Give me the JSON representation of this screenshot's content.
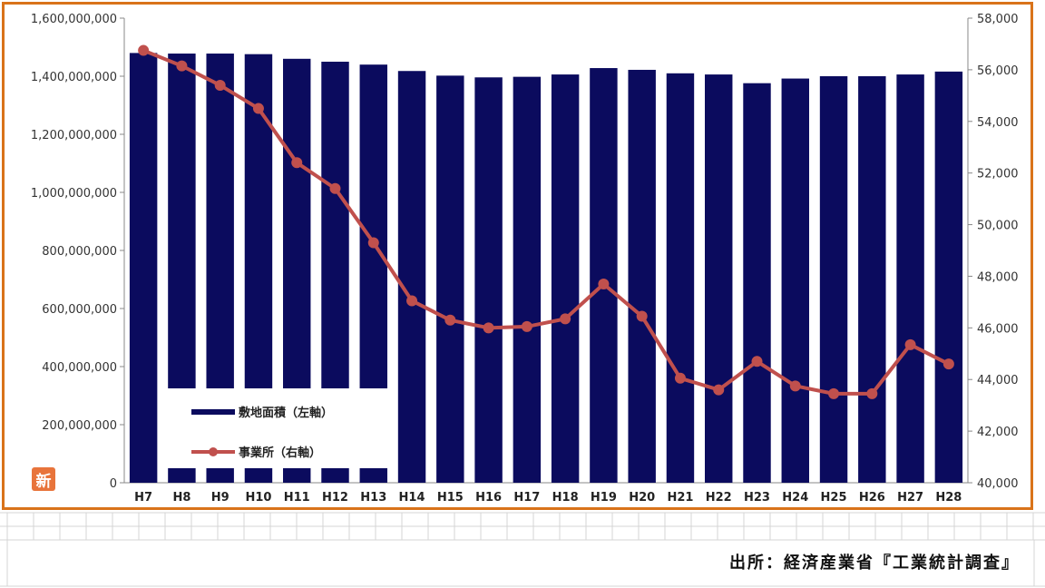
{
  "chart_data": {
    "type": "bar+line",
    "categories": [
      "H7",
      "H8",
      "H9",
      "H10",
      "H11",
      "H12",
      "H13",
      "H14",
      "H15",
      "H16",
      "H17",
      "H18",
      "H19",
      "H20",
      "H21",
      "H22",
      "H23",
      "H24",
      "H25",
      "H26",
      "H27",
      "H28"
    ],
    "series": [
      {
        "name": "敷地面積（左軸）",
        "type": "bar",
        "axis": "left",
        "color": "#0b0b5e",
        "values": [
          1480000000,
          1478000000,
          1478000000,
          1476000000,
          1460000000,
          1450000000,
          1440000000,
          1418000000,
          1402000000,
          1396000000,
          1398000000,
          1406000000,
          1428000000,
          1422000000,
          1410000000,
          1406000000,
          1376000000,
          1392000000,
          1400000000,
          1400000000,
          1406000000,
          1416000000
        ]
      },
      {
        "name": "事業所（右軸）",
        "type": "line",
        "axis": "right",
        "color": "#c0504d",
        "values": [
          56750,
          56150,
          55400,
          54500,
          52400,
          51400,
          49300,
          47050,
          46300,
          46000,
          46050,
          46350,
          47700,
          46450,
          44050,
          43600,
          44700,
          43750,
          43450,
          43450,
          45350,
          44600
        ]
      }
    ],
    "y_left": {
      "range": [
        0,
        1600000000
      ],
      "ticks": [
        "0",
        "200,000,000",
        "400,000,000",
        "600,000,000",
        "800,000,000",
        "1,000,000,000",
        "1,200,000,000",
        "1,400,000,000",
        "1,600,000,000"
      ]
    },
    "y_right": {
      "range": [
        40000,
        58000
      ],
      "ticks": [
        "40,000",
        "42,000",
        "44,000",
        "46,000",
        "48,000",
        "50,000",
        "52,000",
        "54,000",
        "56,000",
        "58,000"
      ]
    },
    "legend_position": "bottom-left",
    "grid": false
  },
  "badge": {
    "label": "新",
    "color": "#e8743b"
  },
  "source_note": "出所：経済産業省『工業統計調査』",
  "colors": {
    "frame": "#d9731a",
    "bar": "#0b0b5e",
    "line": "#c0504d"
  }
}
